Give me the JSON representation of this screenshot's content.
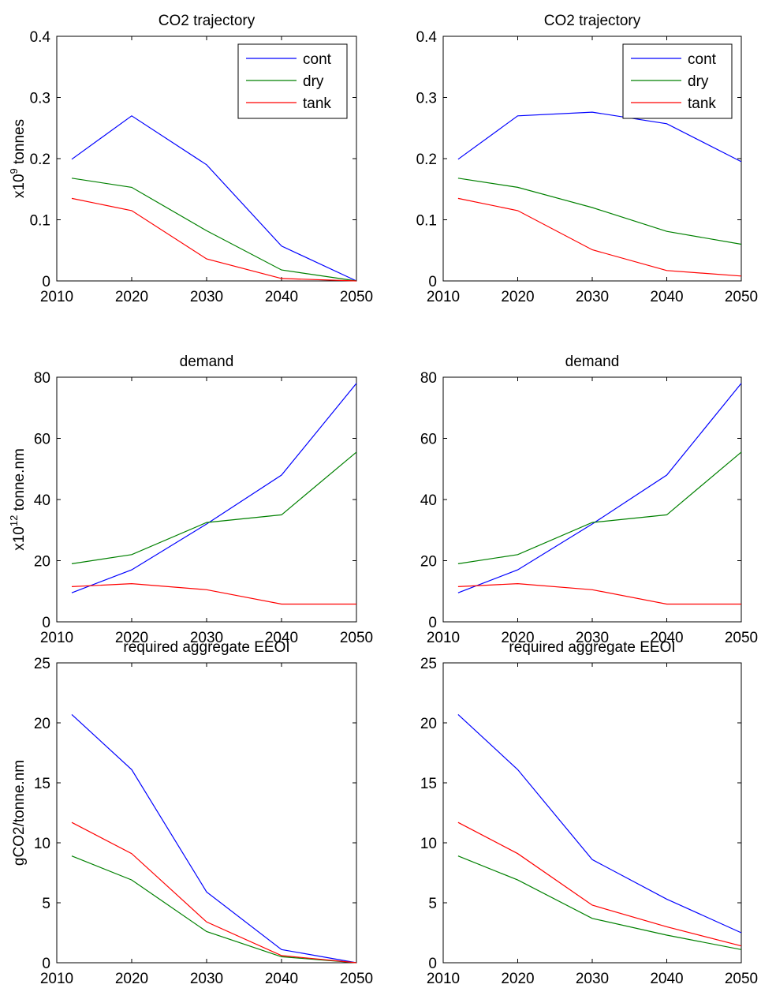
{
  "colors": {
    "cont": "#0000ff",
    "dry": "#008000",
    "tank": "#ff0000",
    "axis": "#000000"
  },
  "chart_data": [
    {
      "type": "line",
      "title": "CO2 trajectory",
      "ylabel_main": "x10",
      "ylabel_sup": "9",
      "ylabel_tail": " tonnes",
      "x": [
        2012,
        2020,
        2030,
        2040,
        2050
      ],
      "xlim": [
        2010,
        2050
      ],
      "ylim": [
        0,
        0.4
      ],
      "xticks": [
        "2010",
        "2020",
        "2030",
        "2040",
        "2050"
      ],
      "yticks": [
        "0",
        "0.1",
        "0.2",
        "0.3",
        "0.4"
      ],
      "legend": "top-right",
      "series": [
        {
          "name": "cont",
          "color": "#0000ff",
          "values": [
            0.199,
            0.27,
            0.19,
            0.057,
            0.0
          ]
        },
        {
          "name": "dry",
          "color": "#008000",
          "values": [
            0.168,
            0.153,
            0.082,
            0.018,
            0.0
          ]
        },
        {
          "name": "tank",
          "color": "#ff0000",
          "values": [
            0.135,
            0.115,
            0.036,
            0.004,
            0.0
          ]
        }
      ]
    },
    {
      "type": "line",
      "title": "CO2 trajectory",
      "x": [
        2012,
        2020,
        2030,
        2040,
        2050
      ],
      "xlim": [
        2010,
        2050
      ],
      "ylim": [
        0,
        0.4
      ],
      "xticks": [
        "2010",
        "2020",
        "2030",
        "2040",
        "2050"
      ],
      "yticks": [
        "0",
        "0.1",
        "0.2",
        "0.3",
        "0.4"
      ],
      "legend": "top-right",
      "series": [
        {
          "name": "cont",
          "color": "#0000ff",
          "values": [
            0.199,
            0.27,
            0.276,
            0.257,
            0.195
          ]
        },
        {
          "name": "dry",
          "color": "#008000",
          "values": [
            0.168,
            0.153,
            0.12,
            0.081,
            0.06
          ]
        },
        {
          "name": "tank",
          "color": "#ff0000",
          "values": [
            0.135,
            0.115,
            0.051,
            0.017,
            0.008
          ]
        }
      ]
    },
    {
      "type": "line",
      "title": "demand",
      "ylabel_main": "x10",
      "ylabel_sup": "12",
      "ylabel_tail": " tonne.nm",
      "x": [
        2012,
        2020,
        2030,
        2040,
        2050
      ],
      "xlim": [
        2010,
        2050
      ],
      "ylim": [
        0,
        80
      ],
      "xticks": [
        "2010",
        "2020",
        "2030",
        "2040",
        "2050"
      ],
      "yticks": [
        "0",
        "20",
        "40",
        "60",
        "80"
      ],
      "series": [
        {
          "color": "#0000ff",
          "values": [
            9.5,
            17,
            32,
            48,
            78
          ]
        },
        {
          "color": "#008000",
          "values": [
            19,
            22,
            32.5,
            35,
            55.5
          ]
        },
        {
          "color": "#ff0000",
          "values": [
            11.5,
            12.5,
            10.5,
            5.8,
            5.8
          ]
        }
      ]
    },
    {
      "type": "line",
      "title": "demand",
      "x": [
        2012,
        2020,
        2030,
        2040,
        2050
      ],
      "xlim": [
        2010,
        2050
      ],
      "ylim": [
        0,
        80
      ],
      "xticks": [
        "2010",
        "2020",
        "2030",
        "2040",
        "2050"
      ],
      "yticks": [
        "0",
        "20",
        "40",
        "60",
        "80"
      ],
      "series": [
        {
          "color": "#0000ff",
          "values": [
            9.5,
            17,
            32,
            48,
            78
          ]
        },
        {
          "color": "#008000",
          "values": [
            19,
            22,
            32.5,
            35,
            55.5
          ]
        },
        {
          "color": "#ff0000",
          "values": [
            11.5,
            12.5,
            10.5,
            5.8,
            5.8
          ]
        }
      ]
    },
    {
      "type": "line",
      "title": "required aggregate EEOI",
      "ylabel_main": "gCO2/tonne.nm",
      "x": [
        2012,
        2020,
        2030,
        2040,
        2050
      ],
      "xlim": [
        2010,
        2050
      ],
      "ylim": [
        0,
        25
      ],
      "xticks": [
        "2010",
        "2020",
        "2030",
        "2040",
        "2050"
      ],
      "yticks": [
        "0",
        "5",
        "10",
        "15",
        "20",
        "25"
      ],
      "series": [
        {
          "color": "#0000ff",
          "values": [
            20.7,
            16.1,
            5.9,
            1.1,
            0.0
          ]
        },
        {
          "color": "#008000",
          "values": [
            8.9,
            6.9,
            2.6,
            0.5,
            0.0
          ]
        },
        {
          "color": "#ff0000",
          "values": [
            11.7,
            9.1,
            3.4,
            0.6,
            0.0
          ]
        }
      ]
    },
    {
      "type": "line",
      "title": "required aggregate EEOI",
      "x": [
        2012,
        2020,
        2030,
        2040,
        2050
      ],
      "xlim": [
        2010,
        2050
      ],
      "ylim": [
        0,
        25
      ],
      "xticks": [
        "2010",
        "2020",
        "2030",
        "2040",
        "2050"
      ],
      "yticks": [
        "0",
        "5",
        "10",
        "15",
        "20",
        "25"
      ],
      "series": [
        {
          "color": "#0000ff",
          "values": [
            20.7,
            16.1,
            8.6,
            5.3,
            2.5
          ]
        },
        {
          "color": "#008000",
          "values": [
            8.9,
            6.9,
            3.7,
            2.3,
            1.1
          ]
        },
        {
          "color": "#ff0000",
          "values": [
            11.7,
            9.1,
            4.8,
            3.0,
            1.4
          ]
        }
      ]
    }
  ]
}
